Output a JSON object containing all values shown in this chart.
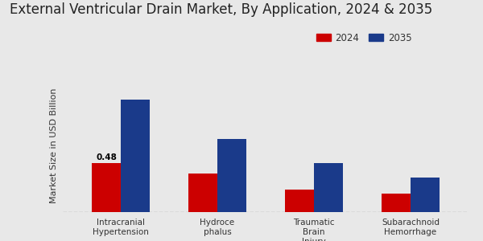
{
  "title": "External Ventricular Drain Market, By Application, 2024 & 2035",
  "ylabel": "Market Size in USD Billion",
  "categories": [
    "Intracranial\nHypertension",
    "Hydroce\nphalus",
    "Traumatic\nBrain\nInjury",
    "Subarachnoid\nHemorrhage"
  ],
  "values_2024": [
    0.48,
    0.38,
    0.22,
    0.18
  ],
  "values_2035": [
    1.1,
    0.72,
    0.48,
    0.34
  ],
  "color_2024": "#cc0000",
  "color_2035": "#1a3a8a",
  "annotation_text": "0.48",
  "annotation_index": 0,
  "bar_width": 0.3,
  "background_color": "#e8e8e8",
  "legend_labels": [
    "2024",
    "2035"
  ],
  "title_fontsize": 12,
  "ylabel_fontsize": 8,
  "tick_fontsize": 7.5,
  "legend_fontsize": 8.5,
  "bottom_bar_color": "#cc0000",
  "ylim": [
    0,
    1.3
  ],
  "dashed_line_y": 0.0
}
